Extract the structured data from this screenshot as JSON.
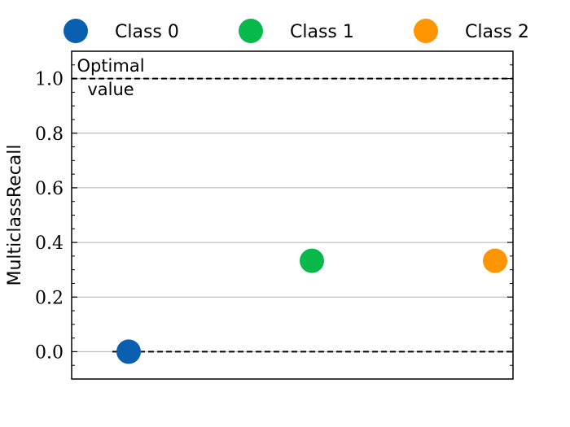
{
  "chart_data": {
    "type": "scatter",
    "title": "",
    "xlabel": "",
    "ylabel": "MulticlassRecall",
    "ylim": [
      -0.1,
      1.1
    ],
    "yticks": [
      "0.0",
      "0.2",
      "0.4",
      "0.6",
      "0.8",
      "1.0"
    ],
    "grid": "horizontal",
    "legend_position": "top",
    "series": [
      {
        "name": "Class 0",
        "color": "#0b5fb0",
        "x": [
          0
        ],
        "y": [
          0.0
        ]
      },
      {
        "name": "Class 1",
        "color": "#08b84a",
        "x": [
          1
        ],
        "y": [
          0.333
        ]
      },
      {
        "name": "Class 2",
        "color": "#ff9500",
        "x": [
          2
        ],
        "y": [
          0.333
        ]
      }
    ],
    "reference_lines": [
      {
        "y": 1.0,
        "style": "dashed",
        "color": "#000000"
      },
      {
        "y": 0.0,
        "style": "dashed",
        "color": "#000000"
      }
    ],
    "annotation": {
      "line1": "Optimal",
      "line2": "value"
    }
  }
}
